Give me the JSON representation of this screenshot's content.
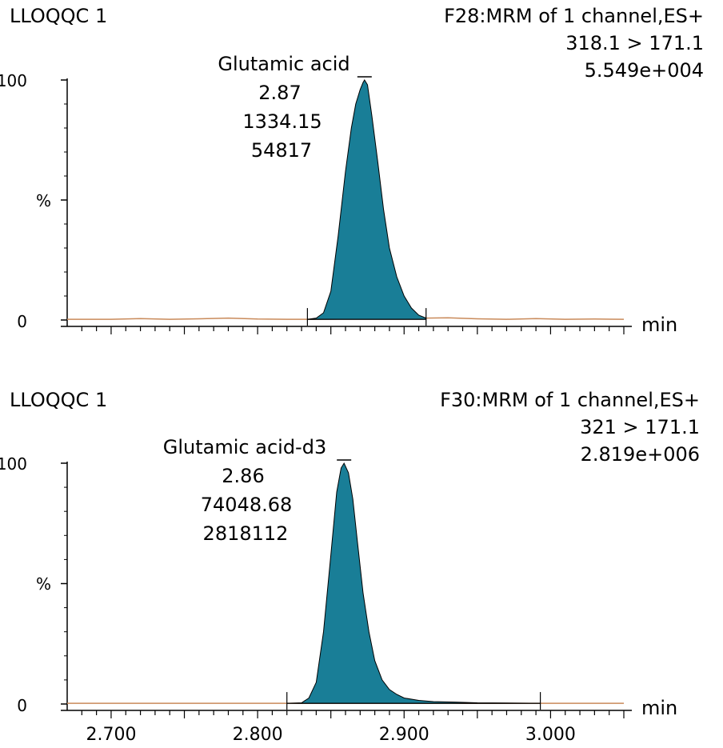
{
  "chart_data": [
    {
      "type": "area",
      "sample_label": "LLOQQC 1",
      "function_label": "F28:MRM of 1 channel,ES+",
      "transition": "318.1 > 171.1",
      "intensity": "5.549e+004",
      "peak": {
        "compound": "Glutamic acid",
        "rt": "2.87",
        "area": "1334.15",
        "height": "54817",
        "apex_x": 2.873,
        "start_x": 2.834,
        "end_x": 2.915
      },
      "y_ticks": [
        "100",
        "%",
        "0"
      ],
      "y_tick_values": [
        100,
        50,
        0
      ],
      "xlabel": "min",
      "xlim": [
        2.67,
        3.05
      ],
      "ylim": [
        0,
        100
      ],
      "baseline": {
        "x": [
          2.67,
          2.7,
          2.72,
          2.74,
          2.76,
          2.78,
          2.8,
          2.82,
          2.834,
          2.915,
          2.93,
          2.95,
          2.97,
          2.99,
          3.01,
          3.03,
          3.05
        ],
        "y": [
          0.3,
          0.3,
          0.6,
          0.3,
          0.5,
          0.8,
          0.4,
          0.3,
          0.3,
          0.8,
          0.9,
          0.5,
          0.3,
          0.6,
          0.3,
          0.4,
          0.3
        ]
      },
      "trace": {
        "x": [
          2.834,
          2.84,
          2.845,
          2.85,
          2.855,
          2.86,
          2.864,
          2.867,
          2.87,
          2.872,
          2.873,
          2.875,
          2.878,
          2.882,
          2.886,
          2.89,
          2.895,
          2.9,
          2.905,
          2.91,
          2.915
        ],
        "y": [
          0.3,
          0.8,
          3.0,
          12,
          35,
          62,
          80,
          90,
          96,
          99,
          100,
          98,
          85,
          66,
          46,
          30,
          18,
          10,
          5,
          2,
          0.8
        ]
      }
    },
    {
      "type": "area",
      "sample_label": "LLOQQC 1",
      "function_label": "F30:MRM of 1 channel,ES+",
      "transition": "321 > 171.1",
      "intensity": "2.819e+006",
      "peak": {
        "compound": "Glutamic acid-d3",
        "rt": "2.86",
        "area": "74048.68",
        "height": "2818112",
        "apex_x": 2.859,
        "start_x": 2.82,
        "end_x": 2.993
      },
      "y_ticks": [
        "100",
        "%",
        "0"
      ],
      "y_tick_values": [
        100,
        50,
        0
      ],
      "xlabel": "min",
      "x_ticks": [
        2.7,
        2.8,
        2.9,
        3.0
      ],
      "x_tick_labels": [
        "2.700",
        "2.800",
        "2.900",
        "3.000"
      ],
      "xlim": [
        2.67,
        3.05
      ],
      "ylim": [
        0,
        100
      ],
      "baseline": {
        "x": [
          2.67,
          2.75,
          2.82,
          2.993,
          3.05
        ],
        "y": [
          0.3,
          0.3,
          0.3,
          0.3,
          0.3
        ]
      },
      "trace": {
        "x": [
          2.82,
          2.83,
          2.835,
          2.84,
          2.845,
          2.85,
          2.854,
          2.857,
          2.859,
          2.862,
          2.865,
          2.868,
          2.872,
          2.876,
          2.88,
          2.885,
          2.89,
          2.895,
          2.9,
          2.91,
          2.92,
          2.935,
          2.95,
          2.993
        ],
        "y": [
          0.3,
          0.5,
          2.5,
          9,
          30,
          62,
          88,
          98,
          100,
          96,
          85,
          68,
          46,
          30,
          18,
          10,
          6,
          4,
          2.5,
          1.5,
          1.0,
          0.8,
          0.5,
          0.3
        ]
      }
    }
  ]
}
